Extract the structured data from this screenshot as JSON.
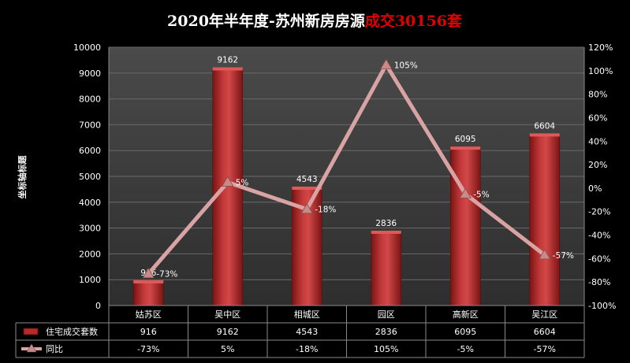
{
  "title": {
    "prefix": "2020年半年度-苏州新房房源",
    "highlight": "成交30156套",
    "prefix_color": "#ffffff",
    "highlight_color": "#e00000"
  },
  "y_axis_title": "坐标轴标题",
  "chart_data": {
    "type": "bar",
    "categories": [
      "姑苏区",
      "吴中区",
      "相城区",
      "园区",
      "高新区",
      "吴江区"
    ],
    "series": [
      {
        "name": "住宅成交套数",
        "type": "bar",
        "axis": "left",
        "values": [
          916,
          9162,
          4543,
          2836,
          6095,
          6604
        ],
        "labels": [
          "916",
          "9162",
          "4543",
          "2836",
          "6095",
          "6604"
        ],
        "color": "#b52a2a"
      },
      {
        "name": "同比",
        "type": "line",
        "axis": "right",
        "values": [
          -73,
          5,
          -18,
          105,
          -5,
          -57
        ],
        "labels": [
          "-73%",
          "5%",
          "-18%",
          "105%",
          "-5%",
          "-57%"
        ],
        "color": "#d9a3a3"
      }
    ],
    "y_left": {
      "ylim": [
        0,
        10000
      ],
      "ticks": [
        "0",
        "1000",
        "2000",
        "3000",
        "4000",
        "5000",
        "6000",
        "7000",
        "8000",
        "9000",
        "10000"
      ]
    },
    "y_right": {
      "ylim": [
        -100,
        120
      ],
      "ticks": [
        "-100%",
        "-80%",
        "-60%",
        "-40%",
        "-20%",
        "0%",
        "20%",
        "40%",
        "60%",
        "80%",
        "100%",
        "120%"
      ]
    },
    "grid": true,
    "data_table": true
  }
}
